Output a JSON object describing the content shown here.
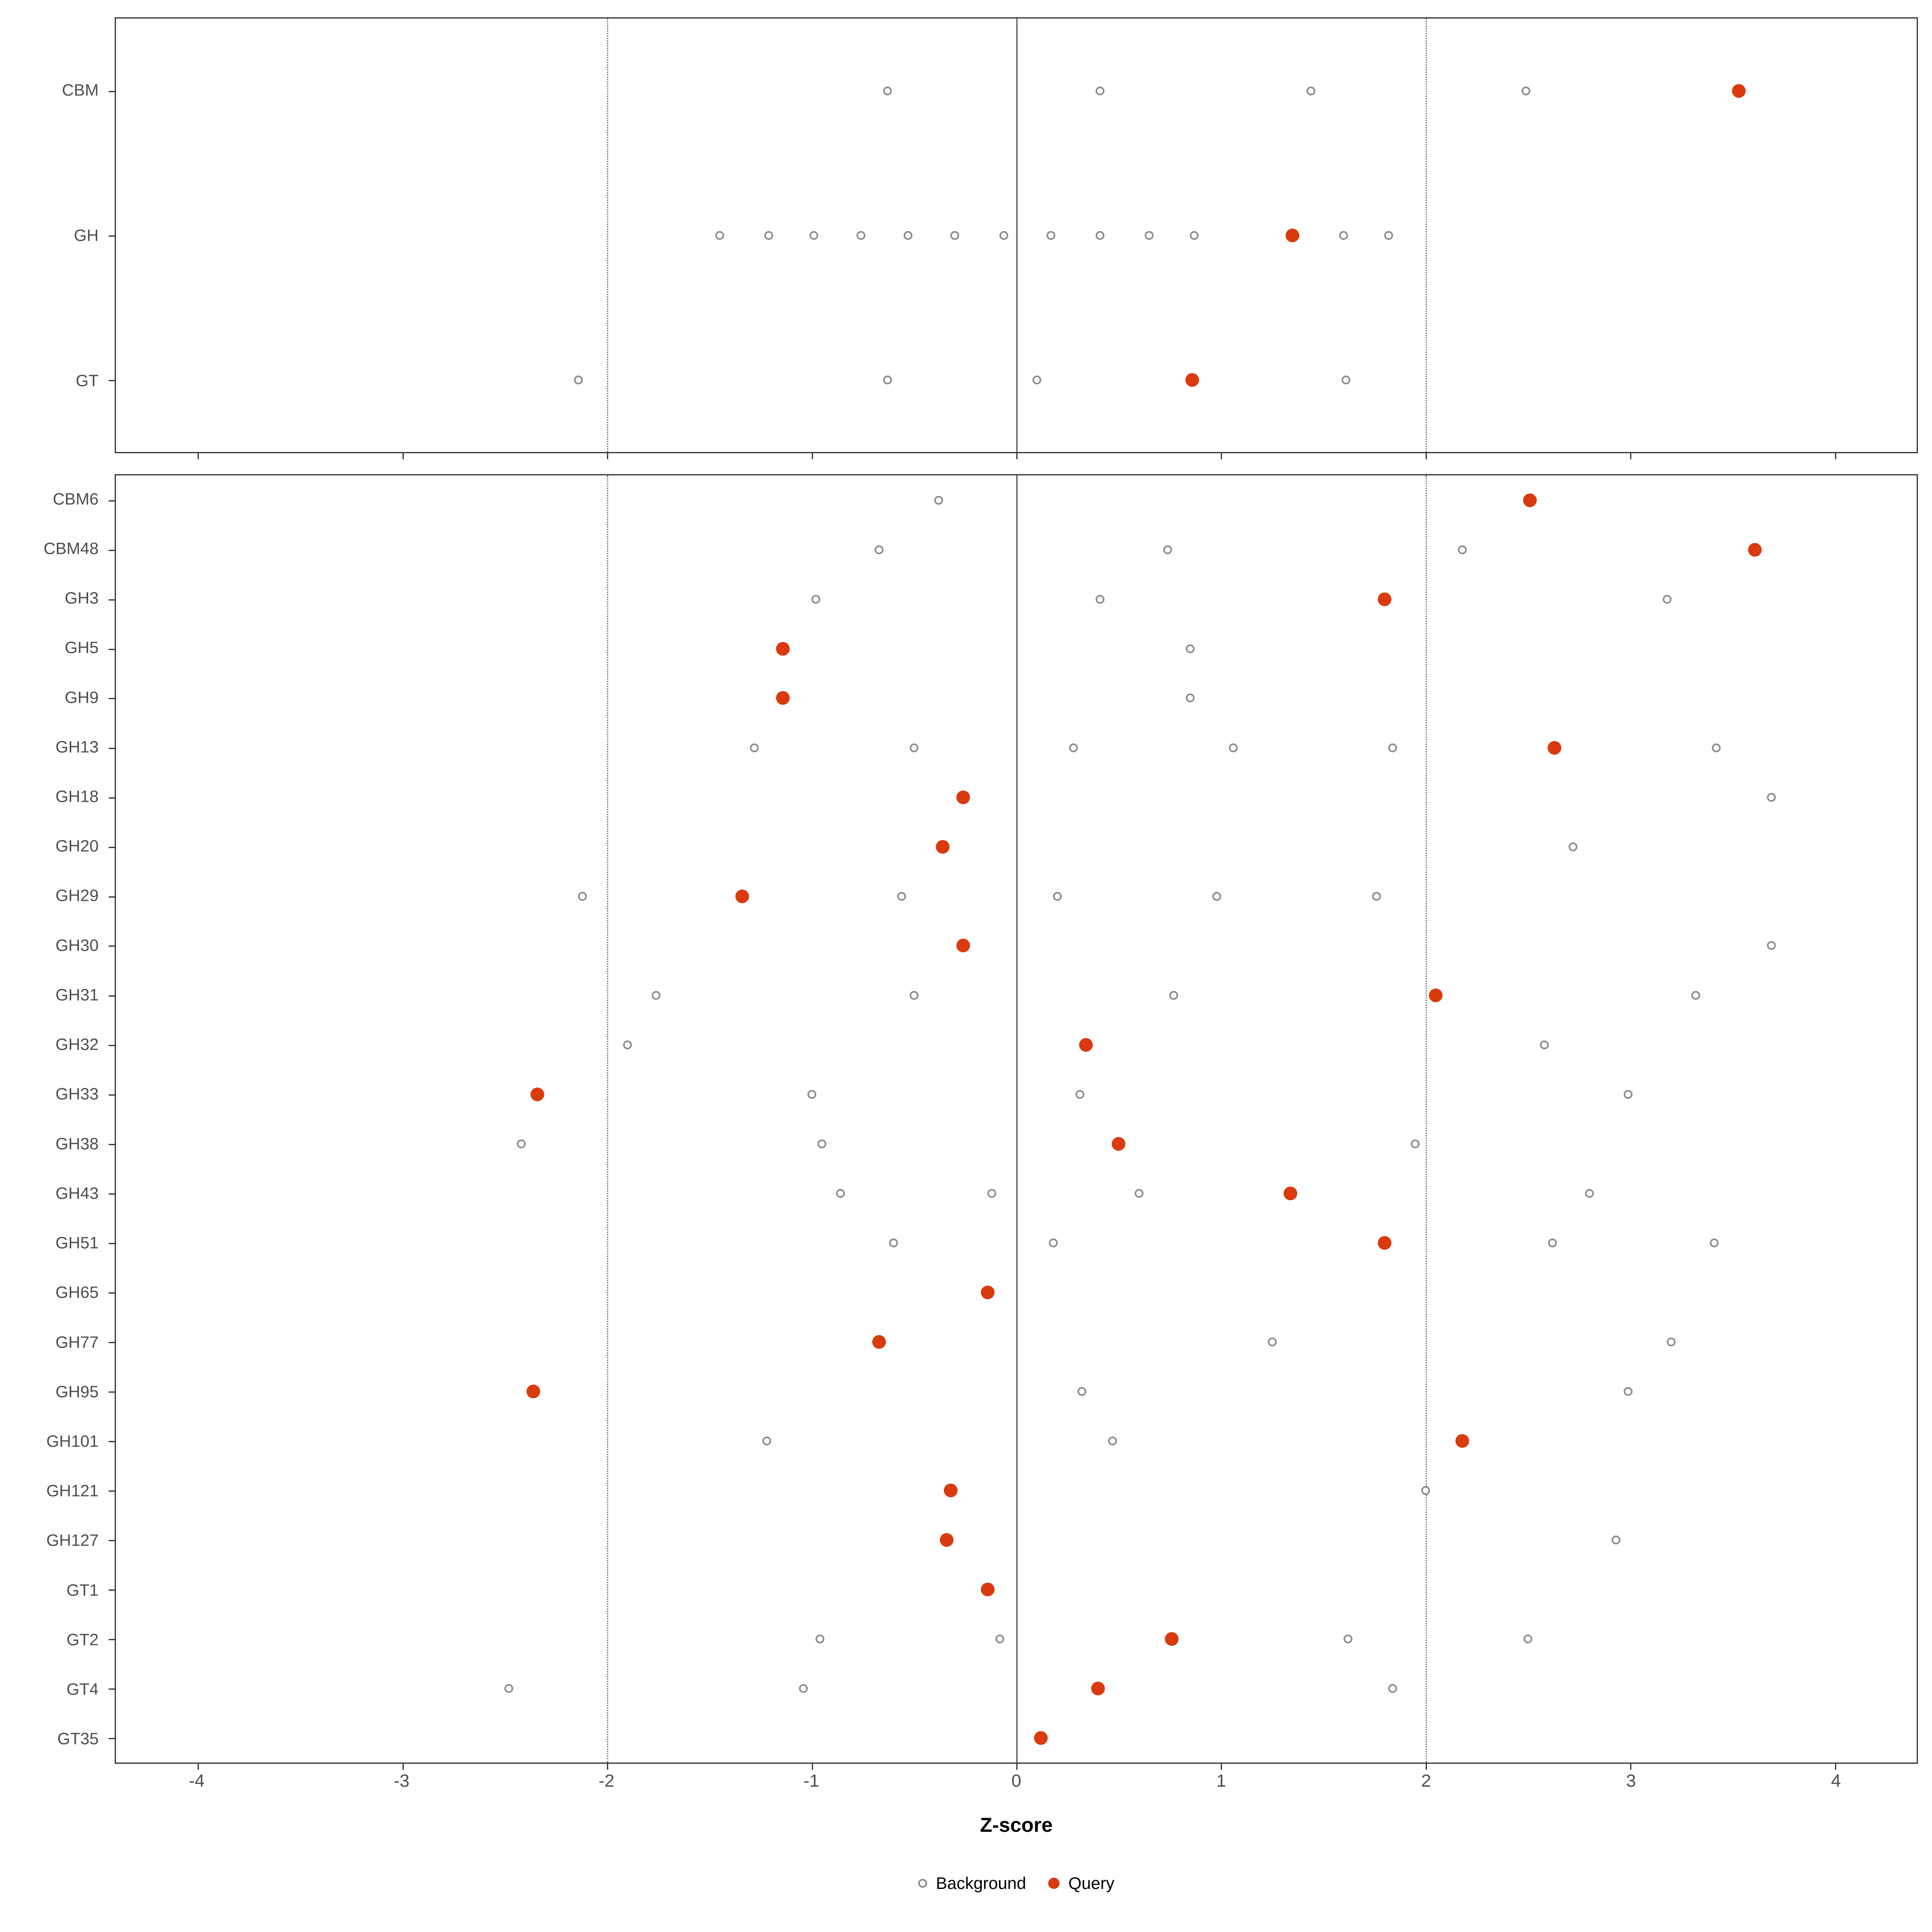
{
  "chart_data": {
    "type": "scatter",
    "title": "",
    "xlabel": "Z-score",
    "xlim": [
      -4.4,
      4.4
    ],
    "x_ticks": [
      -4,
      -3,
      -2,
      -1,
      0,
      1,
      2,
      3,
      4
    ],
    "ref_lines": {
      "solid": [
        0
      ],
      "dotted": [
        -2,
        2
      ]
    },
    "grid": false,
    "legend_position": "bottom",
    "colors": {
      "query": "#D93A0E",
      "background_stroke": "#8C8C8C",
      "panel_border": "#333333",
      "axis_text": "#4d4d4d"
    },
    "legend": [
      {
        "label": "Background",
        "style": "open"
      },
      {
        "label": "Query",
        "style": "filled"
      }
    ],
    "panels": [
      {
        "name": "summary",
        "rows": [
          {
            "label": "CBM",
            "background": [
              -0.63,
              0.41,
              1.44,
              2.49
            ],
            "query": 3.53
          },
          {
            "label": "GH",
            "background": [
              -1.45,
              -1.21,
              -0.99,
              -0.76,
              -0.53,
              -0.3,
              -0.06,
              0.17,
              0.41,
              0.65,
              0.87,
              1.6,
              1.82
            ],
            "query": 1.35
          },
          {
            "label": "GT",
            "background": [
              -2.14,
              -0.63,
              0.1,
              1.61
            ],
            "query": 0.86
          }
        ]
      },
      {
        "name": "families",
        "rows": [
          {
            "label": "CBM6",
            "background": [
              -0.38
            ],
            "query": 2.51
          },
          {
            "label": "CBM48",
            "background": [
              -0.67,
              0.74,
              2.18
            ],
            "query": 3.61
          },
          {
            "label": "GH3",
            "background": [
              -0.98,
              0.41,
              3.18
            ],
            "query": 1.8
          },
          {
            "label": "GH5",
            "background": [
              0.85
            ],
            "query": -1.14
          },
          {
            "label": "GH9",
            "background": [
              0.85
            ],
            "query": -1.14
          },
          {
            "label": "GH13",
            "background": [
              -1.28,
              -0.5,
              0.28,
              1.06,
              1.84,
              3.42
            ],
            "query": 2.63
          },
          {
            "label": "GH18",
            "background": [
              3.69
            ],
            "query": -0.26
          },
          {
            "label": "GH20",
            "background": [
              2.72
            ],
            "query": -0.36
          },
          {
            "label": "GH29",
            "background": [
              -2.12,
              -0.56,
              0.2,
              0.98,
              1.76
            ],
            "query": -1.34
          },
          {
            "label": "GH30",
            "background": [
              3.69
            ],
            "query": -0.26
          },
          {
            "label": "GH31",
            "background": [
              -1.76,
              -0.5,
              0.77,
              3.32
            ],
            "query": 2.05
          },
          {
            "label": "GH32",
            "background": [
              -1.9,
              2.58
            ],
            "query": 0.34
          },
          {
            "label": "GH33",
            "background": [
              -1.0,
              0.31,
              2.99
            ],
            "query": -2.34
          },
          {
            "label": "GH38",
            "background": [
              -2.42,
              -0.95,
              1.95
            ],
            "query": 0.5
          },
          {
            "label": "GH43",
            "background": [
              -0.86,
              -0.12,
              0.6,
              2.8
            ],
            "query": 1.34
          },
          {
            "label": "GH51",
            "background": [
              -0.6,
              0.18,
              2.62,
              3.41
            ],
            "query": 1.8
          },
          {
            "label": "GH65",
            "background": [],
            "query": -0.14
          },
          {
            "label": "GH77",
            "background": [
              1.25,
              3.2
            ],
            "query": -0.67
          },
          {
            "label": "GH95",
            "background": [
              0.32,
              2.99
            ],
            "query": -2.36
          },
          {
            "label": "GH101",
            "background": [
              -1.22,
              0.47
            ],
            "query": 2.18
          },
          {
            "label": "GH121",
            "background": [
              2.0
            ],
            "query": -0.32
          },
          {
            "label": "GH127",
            "background": [
              2.93
            ],
            "query": -0.34
          },
          {
            "label": "GT1",
            "background": [],
            "query": -0.14
          },
          {
            "label": "GT2",
            "background": [
              -0.96,
              -0.08,
              1.62,
              2.5
            ],
            "query": 0.76
          },
          {
            "label": "GT4",
            "background": [
              -2.48,
              -1.04,
              1.84
            ],
            "query": 0.4
          },
          {
            "label": "GT35",
            "background": [],
            "query": 0.12
          }
        ]
      }
    ]
  }
}
